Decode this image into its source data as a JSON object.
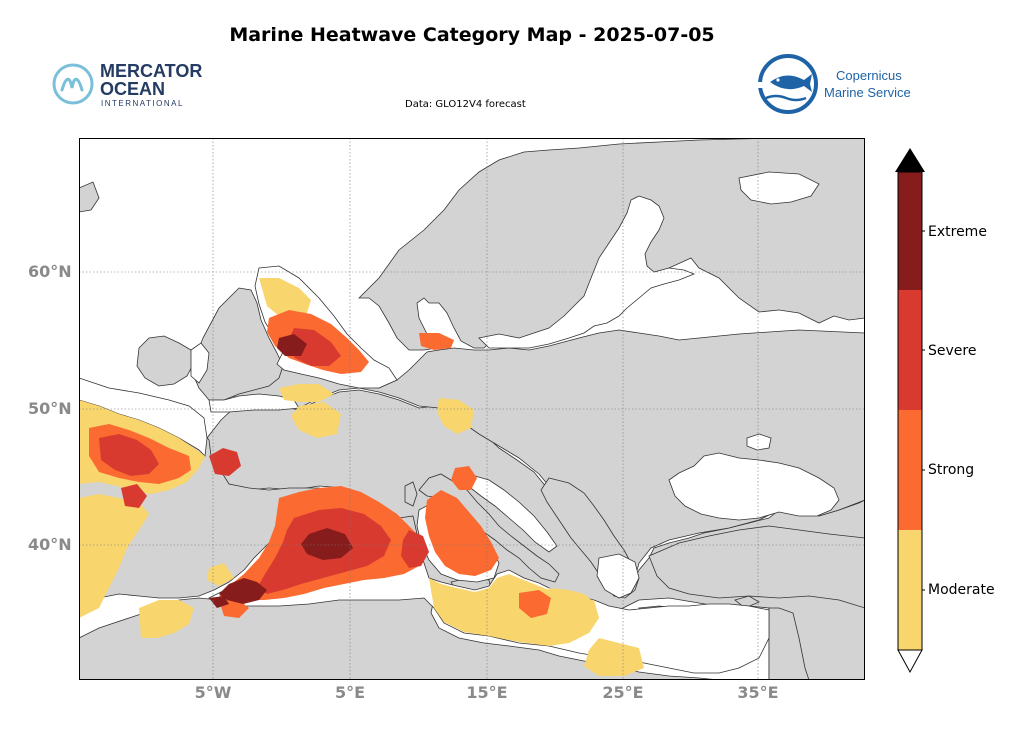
{
  "title": "Marine Heatwave Category Map - 2025-07-05",
  "subtitle": "Data: GLO12V4 forecast",
  "logos": {
    "mercator": {
      "line1": "MERCATOR",
      "line2": "OCEAN",
      "line3": "INTERNATIONAL"
    },
    "copernicus": {
      "line1": "Copernicus",
      "line2": "Marine Service"
    }
  },
  "map": {
    "x_ticks": [
      "5°W",
      "5°E",
      "15°E",
      "25°E",
      "35°E"
    ],
    "y_ticks": [
      "60°N",
      "50°N",
      "40°N"
    ],
    "land_color": "#d3d3d3",
    "sea_color": "#ffffff"
  },
  "legend": {
    "categories": [
      "Extreme",
      "Severe",
      "Strong",
      "Moderate"
    ],
    "colors": {
      "Moderate": "#f9d56e",
      "Strong": "#fb6a31",
      "Severe": "#d93a30",
      "Extreme": "#861c1c"
    }
  }
}
